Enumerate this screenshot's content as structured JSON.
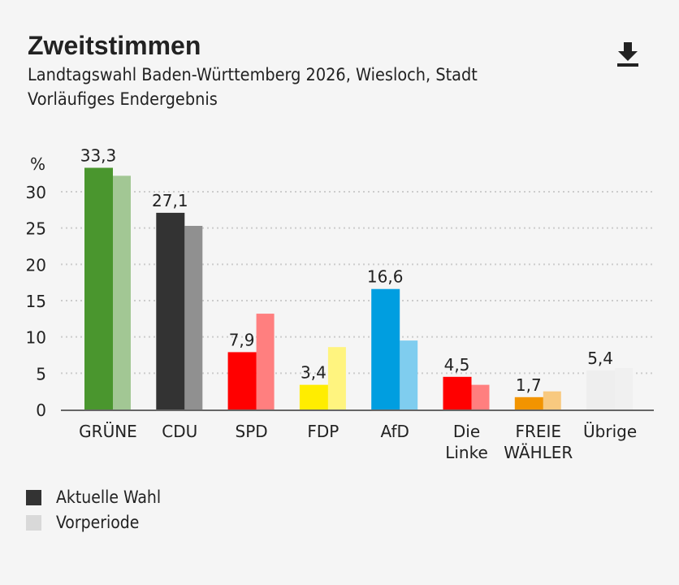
{
  "header": {
    "title": "Zweitstimmen",
    "subtitle": "Landtagswahl Baden-Württemberg 2026, Wiesloch, Stadt",
    "status": "Vorläufiges Endergebnis",
    "download_icon": "download-icon"
  },
  "legend": [
    {
      "label": "Aktuelle Wahl",
      "color": "#333333"
    },
    {
      "label": "Vorperiode",
      "color": "#d9d9d9"
    }
  ],
  "chart_data": {
    "type": "bar",
    "ylabel": "%",
    "ylim": [
      0,
      35
    ],
    "yticks": [
      0,
      5,
      10,
      15,
      20,
      25,
      30
    ],
    "grid": true,
    "legend_position": "bottom-left",
    "categories": [
      [
        "GRÜNE"
      ],
      [
        "CDU"
      ],
      [
        "SPD"
      ],
      [
        "FDP"
      ],
      [
        "AfD"
      ],
      [
        "Die",
        "Linke"
      ],
      [
        "FREIE",
        "WÄHLER"
      ],
      [
        "Übrige"
      ]
    ],
    "series": [
      {
        "name": "Aktuelle Wahl",
        "values": [
          33.3,
          27.1,
          7.9,
          3.4,
          16.6,
          4.5,
          1.7,
          5.4
        ],
        "labels": [
          "33,3",
          "27,1",
          "7,9",
          "3,4",
          "16,6",
          "4,5",
          "1,7",
          "5,4"
        ],
        "colors": [
          "#4a962e",
          "#333333",
          "#ff0000",
          "#ffed00",
          "#009ee0",
          "#ff0000",
          "#f29400",
          "#eeeeee"
        ]
      },
      {
        "name": "Vorperiode",
        "values": [
          32.2,
          25.3,
          13.2,
          8.6,
          9.5,
          3.4,
          2.5,
          5.7
        ],
        "colors": [
          "#a2c794",
          "#909090",
          "#ff7f7f",
          "#fff47f",
          "#7fcdef",
          "#ff7f7f",
          "#f8c97f",
          "#f0f0f0"
        ]
      }
    ]
  }
}
